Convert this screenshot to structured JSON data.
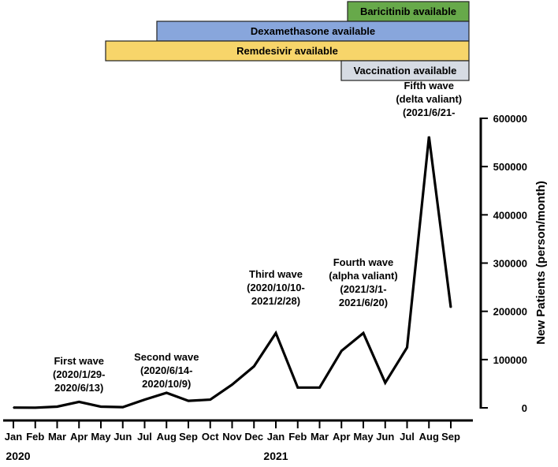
{
  "availability_bars": [
    {
      "label": "Baricitinib available",
      "start": "Apr",
      "end": "Sep",
      "color": "#67a94a"
    },
    {
      "label": "Dexamethasone available",
      "start": "Jul",
      "end": "Sep",
      "color": "#88a6dc"
    },
    {
      "label": "Remdesivir available",
      "start": "Apr",
      "end": "Sep",
      "color": "#f7d56a"
    },
    {
      "label": "Vaccination available",
      "start": "Feb",
      "end": "Sep",
      "color": "#d6dbe3"
    }
  ],
  "chart_data": {
    "type": "line",
    "ylabel": "New Patients (person/month)",
    "ylim": [
      0,
      600000
    ],
    "yticks": [
      "0",
      "100000",
      "200000",
      "300000",
      "400000",
      "500000",
      "600000"
    ],
    "xticks": [
      "Jan",
      "Feb",
      "Mar",
      "Apr",
      "May",
      "Jun",
      "Jul",
      "Aug",
      "Sep",
      "Oct",
      "Nov",
      "Dec",
      "Jan",
      "Feb",
      "Mar",
      "Apr",
      "May",
      "Jun",
      "Jul",
      "Aug",
      "Sep"
    ],
    "year_labels": [
      {
        "text": "2020",
        "at_index": 0
      },
      {
        "text": "2021",
        "at_index": 12
      }
    ],
    "y_axis_side": "right",
    "grid": false,
    "series": [
      {
        "values": [
          500,
          300,
          2500,
          12500,
          2500,
          1500,
          17000,
          31000,
          14500,
          17000,
          48000,
          86000,
          155000,
          42000,
          42000,
          118000,
          155000,
          52000,
          125000,
          562000,
          208000
        ]
      }
    ],
    "annotations": [
      {
        "lines": [
          "First wave",
          "(2020/1/29-",
          "2020/6/13)"
        ],
        "at_index": 3
      },
      {
        "lines": [
          "Second wave",
          "(2020/6/14-",
          "2020/10/9)"
        ],
        "at_index": 7
      },
      {
        "lines": [
          "Third wave",
          "(2020/10/10-",
          "2021/2/28)"
        ],
        "at_index": 12
      },
      {
        "lines": [
          "Fourth wave",
          "(alpha valiant)",
          "(2021/3/1-",
          "2021/6/20)"
        ],
        "at_index": 16
      },
      {
        "lines": [
          "Fifth wave",
          "(delta valiant)",
          "(2021/6/21-"
        ],
        "at_index": 19
      }
    ]
  }
}
